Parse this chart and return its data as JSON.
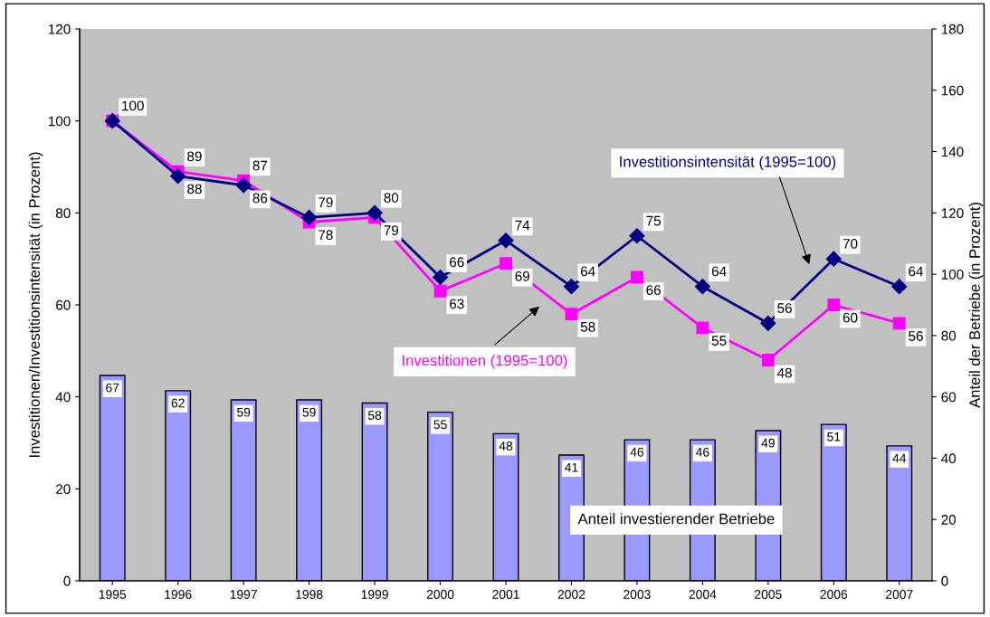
{
  "chart_data": {
    "type": "line",
    "categories": [
      "1995",
      "1996",
      "1997",
      "1998",
      "1999",
      "2000",
      "2001",
      "2002",
      "2003",
      "2004",
      "2005",
      "2006",
      "2007"
    ],
    "ylabel": "Investitionen/Investitionsintensität (in Prozent)",
    "y2label": "Anteil der Betriebe (in Prozent)",
    "ylim": [
      0,
      120
    ],
    "yticks": [
      0,
      20,
      40,
      60,
      80,
      100,
      120
    ],
    "y2lim": [
      0,
      180
    ],
    "y2ticks": [
      0,
      20,
      40,
      60,
      80,
      100,
      120,
      140,
      160,
      180
    ],
    "series": [
      {
        "name": "Anteil investierender Betriebe",
        "type": "bar",
        "axis": "y2",
        "color": "#9999ff",
        "values": [
          67,
          62,
          59,
          59,
          58,
          55,
          48,
          41,
          46,
          46,
          49,
          51,
          44
        ]
      },
      {
        "name": "Investitionsintensität (1995=100)",
        "color": "#000080",
        "marker": "diamond",
        "values": [
          100,
          88,
          86,
          79,
          80,
          66,
          74,
          64,
          75,
          64,
          56,
          70,
          64
        ]
      },
      {
        "name": "Investitionen (1995=100)",
        "color": "#ff00ff",
        "marker": "square",
        "values": [
          100,
          89,
          87,
          78,
          79,
          63,
          69,
          58,
          66,
          55,
          48,
          60,
          56
        ],
        "value_labels": [
          null,
          "89",
          "87",
          "78",
          "79",
          "63",
          "69",
          "58",
          "66",
          "55",
          "48",
          "60",
          "56"
        ]
      }
    ],
    "data_labels": true,
    "grid": false,
    "legend": false
  }
}
